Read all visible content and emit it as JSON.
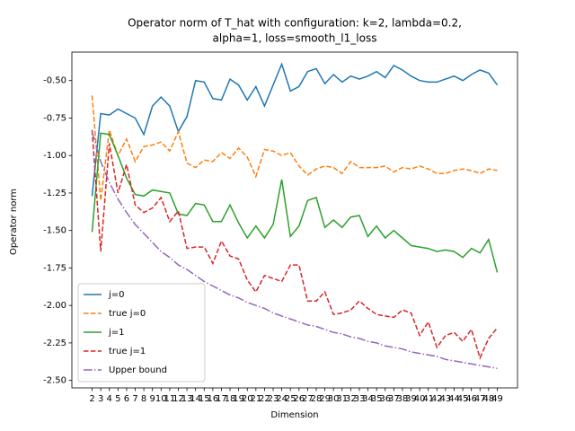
{
  "chart_data": {
    "type": "line",
    "title": "Operator norm of T_hat with configuration: k=2, lambda=0.2,",
    "subtitle": "alpha=1, loss=smooth_l1_loss",
    "xlabel": "Dimension",
    "ylabel": "Operator norm",
    "x": [
      2,
      3,
      4,
      5,
      6,
      7,
      8,
      9,
      10,
      11,
      12,
      13,
      14,
      15,
      16,
      17,
      18,
      19,
      20,
      21,
      22,
      23,
      24,
      25,
      26,
      27,
      28,
      29,
      30,
      31,
      32,
      33,
      34,
      35,
      36,
      37,
      38,
      39,
      40,
      41,
      42,
      43,
      44,
      45,
      46,
      47,
      48,
      49
    ],
    "xlim": [
      -0.35,
      51.35
    ],
    "xticks": [
      2,
      3,
      4,
      5,
      6,
      7,
      8,
      9,
      10,
      11,
      12,
      13,
      14,
      15,
      16,
      17,
      18,
      19,
      20,
      21,
      22,
      23,
      24,
      25,
      26,
      27,
      28,
      29,
      30,
      31,
      32,
      33,
      34,
      35,
      36,
      37,
      38,
      39,
      40,
      41,
      42,
      43,
      44,
      45,
      46,
      47,
      48,
      49
    ],
    "ylim": [
      -2.55,
      -0.31
    ],
    "yticks": [
      {
        "value": -2.5,
        "label": "-2.50"
      },
      {
        "value": -2.25,
        "label": "-2.25"
      },
      {
        "value": -2.0,
        "label": "-2.00"
      },
      {
        "value": -1.75,
        "label": "-1.75"
      },
      {
        "value": -1.5,
        "label": "-1.50"
      },
      {
        "value": -1.25,
        "label": "-1.25"
      },
      {
        "value": -1.0,
        "label": "-1.00"
      },
      {
        "value": -0.75,
        "label": "-0.75"
      },
      {
        "value": -0.5,
        "label": "-0.50"
      }
    ],
    "legend": "lower left",
    "series": [
      {
        "name": "j=0",
        "color": "#1f77b4",
        "linestyle": "solid",
        "values": [
          -1.27,
          -0.72,
          -0.73,
          -0.69,
          -0.72,
          -0.75,
          -0.86,
          -0.67,
          -0.61,
          -0.67,
          -0.84,
          -0.74,
          -0.5,
          -0.51,
          -0.62,
          -0.63,
          -0.49,
          -0.53,
          -0.63,
          -0.54,
          -0.67,
          -0.53,
          -0.39,
          -0.57,
          -0.54,
          -0.44,
          -0.42,
          -0.52,
          -0.46,
          -0.51,
          -0.47,
          -0.49,
          -0.47,
          -0.44,
          -0.48,
          -0.4,
          -0.43,
          -0.47,
          -0.5,
          -0.51,
          -0.51,
          -0.49,
          -0.47,
          -0.5,
          -0.46,
          -0.43,
          -0.45,
          -0.53
        ]
      },
      {
        "name": "true j=0",
        "color": "#ff7f0e",
        "linestyle": "dashed",
        "values": [
          -0.6,
          -1.3,
          -0.83,
          -1.0,
          -0.89,
          -1.04,
          -0.94,
          -0.93,
          -0.91,
          -0.97,
          -0.84,
          -1.05,
          -1.08,
          -1.03,
          -1.04,
          -0.98,
          -1.02,
          -0.95,
          -1.01,
          -1.14,
          -0.96,
          -0.97,
          -1.0,
          -0.98,
          -1.07,
          -1.13,
          -1.09,
          -1.07,
          -1.08,
          -1.12,
          -1.04,
          -1.08,
          -1.08,
          -1.08,
          -1.07,
          -1.11,
          -1.08,
          -1.09,
          -1.07,
          -1.09,
          -1.12,
          -1.12,
          -1.1,
          -1.09,
          -1.1,
          -1.12,
          -1.09,
          -1.1
        ]
      },
      {
        "name": "j=1",
        "color": "#2ca02c",
        "linestyle": "solid",
        "values": [
          -1.51,
          -0.85,
          -0.86,
          -1.0,
          -1.15,
          -1.26,
          -1.27,
          -1.23,
          -1.24,
          -1.25,
          -1.39,
          -1.4,
          -1.32,
          -1.33,
          -1.44,
          -1.44,
          -1.33,
          -1.45,
          -1.55,
          -1.47,
          -1.55,
          -1.46,
          -1.16,
          -1.54,
          -1.47,
          -1.3,
          -1.28,
          -1.48,
          -1.43,
          -1.48,
          -1.41,
          -1.4,
          -1.54,
          -1.47,
          -1.55,
          -1.5,
          -1.55,
          -1.6,
          -1.61,
          -1.62,
          -1.64,
          -1.63,
          -1.64,
          -1.68,
          -1.62,
          -1.65,
          -1.56,
          -1.78
        ]
      },
      {
        "name": "true j=1",
        "color": "#d62728",
        "linestyle": "dashed",
        "values": [
          -0.83,
          -1.64,
          -0.92,
          -1.25,
          -1.06,
          -1.33,
          -1.38,
          -1.35,
          -1.28,
          -1.44,
          -1.37,
          -1.62,
          -1.61,
          -1.61,
          -1.72,
          -1.57,
          -1.67,
          -1.69,
          -1.83,
          -1.91,
          -1.8,
          -1.82,
          -1.84,
          -1.73,
          -1.73,
          -1.97,
          -1.97,
          -1.91,
          -2.06,
          -2.05,
          -2.03,
          -1.97,
          -2.02,
          -2.06,
          -2.07,
          -2.08,
          -2.03,
          -2.05,
          -2.2,
          -2.11,
          -2.28,
          -2.2,
          -2.18,
          -2.24,
          -2.16,
          -2.35,
          -2.22,
          -2.15
        ]
      },
      {
        "name": "Upper bound",
        "color": "#9467bd",
        "linestyle": "dashdot",
        "values": [
          -0.84,
          -1.04,
          -1.18,
          -1.29,
          -1.38,
          -1.46,
          -1.52,
          -1.58,
          -1.64,
          -1.68,
          -1.73,
          -1.76,
          -1.8,
          -1.84,
          -1.87,
          -1.9,
          -1.93,
          -1.95,
          -1.98,
          -2.0,
          -2.02,
          -2.05,
          -2.07,
          -2.09,
          -2.11,
          -2.13,
          -2.14,
          -2.16,
          -2.18,
          -2.19,
          -2.21,
          -2.22,
          -2.24,
          -2.25,
          -2.27,
          -2.28,
          -2.29,
          -2.31,
          -2.32,
          -2.33,
          -2.34,
          -2.36,
          -2.37,
          -2.38,
          -2.39,
          -2.4,
          -2.41,
          -2.42
        ]
      }
    ]
  }
}
